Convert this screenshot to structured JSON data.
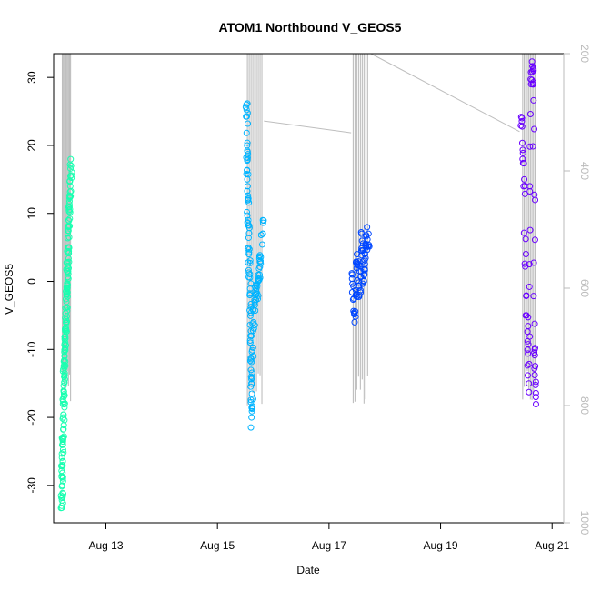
{
  "chart_data": {
    "type": "scatter",
    "title": "ATOM1 Northbound V_GEOS5",
    "xlabel": "Date",
    "ylabel": "V_GEOS5",
    "x_ticks": [
      "Aug 13",
      "Aug 15",
      "Aug 17",
      "Aug 19",
      "Aug 21"
    ],
    "y_ticks": [
      "-30",
      "-20",
      "-10",
      "0",
      "10",
      "20",
      "30"
    ],
    "y2_ticks": [
      "200",
      "400",
      "600",
      "800",
      "1000"
    ],
    "xlim": [
      "Aug 12 01:30",
      "Aug 21 05:00"
    ],
    "ylim": [
      -35.5,
      33.5
    ],
    "y2lim": [
      1000,
      200
    ],
    "y2_reversed": true,
    "grid": false,
    "colors": {
      "segment1": "#19ffb0",
      "segment2": "#00b4ff",
      "segment3": "#0046ff",
      "segment4": "#6a00ff",
      "altitude": "#bebebe"
    },
    "series": [
      {
        "segment": 1,
        "x_range": [
          "Aug 12 05:00",
          "Aug 12 09:00"
        ],
        "points": [
          {
            "x": "Aug 12 05:00",
            "y": -33
          },
          {
            "x": "Aug 12 05:10",
            "y": -30
          },
          {
            "x": "Aug 12 05:20",
            "y": -27
          },
          {
            "x": "Aug 12 05:30",
            "y": -24
          },
          {
            "x": "Aug 12 05:40",
            "y": -20
          },
          {
            "x": "Aug 12 05:50",
            "y": -17
          },
          {
            "x": "Aug 12 06:00",
            "y": -14
          },
          {
            "x": "Aug 12 06:15",
            "y": -11
          },
          {
            "x": "Aug 12 06:30",
            "y": -9
          },
          {
            "x": "Aug 12 06:45",
            "y": -6
          },
          {
            "x": "Aug 12 07:00",
            "y": -3
          },
          {
            "x": "Aug 12 07:15",
            "y": -1
          },
          {
            "x": "Aug 12 07:30",
            "y": 2
          },
          {
            "x": "Aug 12 07:45",
            "y": 5
          },
          {
            "x": "Aug 12 08:00",
            "y": 8
          },
          {
            "x": "Aug 12 08:20",
            "y": 11
          },
          {
            "x": "Aug 12 08:40",
            "y": 14
          },
          {
            "x": "Aug 12 09:00",
            "y": 17
          }
        ]
      },
      {
        "segment": 2,
        "x_range": [
          "Aug 15 12:30",
          "Aug 15 19:30"
        ],
        "points": [
          {
            "x": "Aug 15 12:30",
            "y": 26
          },
          {
            "x": "Aug 15 12:45",
            "y": 20
          },
          {
            "x": "Aug 15 13:00",
            "y": 14
          },
          {
            "x": "Aug 15 13:15",
            "y": 9
          },
          {
            "x": "Aug 15 13:30",
            "y": 4
          },
          {
            "x": "Aug 15 14:00",
            "y": -2
          },
          {
            "x": "Aug 15 14:15",
            "y": -8
          },
          {
            "x": "Aug 15 14:30",
            "y": -14
          },
          {
            "x": "Aug 15 14:40",
            "y": -20
          },
          {
            "x": "Aug 15 15:30",
            "y": -6
          },
          {
            "x": "Aug 15 16:30",
            "y": -2
          },
          {
            "x": "Aug 15 17:30",
            "y": 0
          },
          {
            "x": "Aug 15 18:30",
            "y": 3
          },
          {
            "x": "Aug 15 19:30",
            "y": 9
          }
        ]
      },
      {
        "segment": 3,
        "x_range": [
          "Aug 17 10:00",
          "Aug 17 17:00"
        ],
        "points": [
          {
            "x": "Aug 17 10:00",
            "y": 1
          },
          {
            "x": "Aug 17 11:00",
            "y": -6
          },
          {
            "x": "Aug 17 12:00",
            "y": 4
          },
          {
            "x": "Aug 17 13:00",
            "y": -2
          },
          {
            "x": "Aug 17 14:00",
            "y": 7
          },
          {
            "x": "Aug 17 15:00",
            "y": 0
          },
          {
            "x": "Aug 17 16:00",
            "y": 5
          },
          {
            "x": "Aug 17 17:00",
            "y": 7
          }
        ]
      },
      {
        "segment": 4,
        "x_range": [
          "Aug 20 11:00",
          "Aug 20 17:00"
        ],
        "points": [
          {
            "x": "Aug 20 11:00",
            "y": 24
          },
          {
            "x": "Aug 20 12:00",
            "y": 15
          },
          {
            "x": "Aug 20 13:00",
            "y": -5
          },
          {
            "x": "Aug 20 14:00",
            "y": -15
          },
          {
            "x": "Aug 20 15:00",
            "y": 29
          },
          {
            "x": "Aug 20 16:00",
            "y": 31
          },
          {
            "x": "Aug 20 16:30",
            "y": -10
          },
          {
            "x": "Aug 20 17:00",
            "y": -17
          }
        ]
      }
    ],
    "altitude_profile": {
      "axis": "right",
      "color": "#bebebe",
      "flight_track": [
        {
          "x": "Aug 15 20:00",
          "y2": 315
        },
        {
          "x": "Aug 17 09:30",
          "y2": 335
        },
        {
          "x": "Aug 17 18:00",
          "y2": 200
        },
        {
          "x": "Aug 20 10:00",
          "y2": 333
        }
      ]
    }
  }
}
